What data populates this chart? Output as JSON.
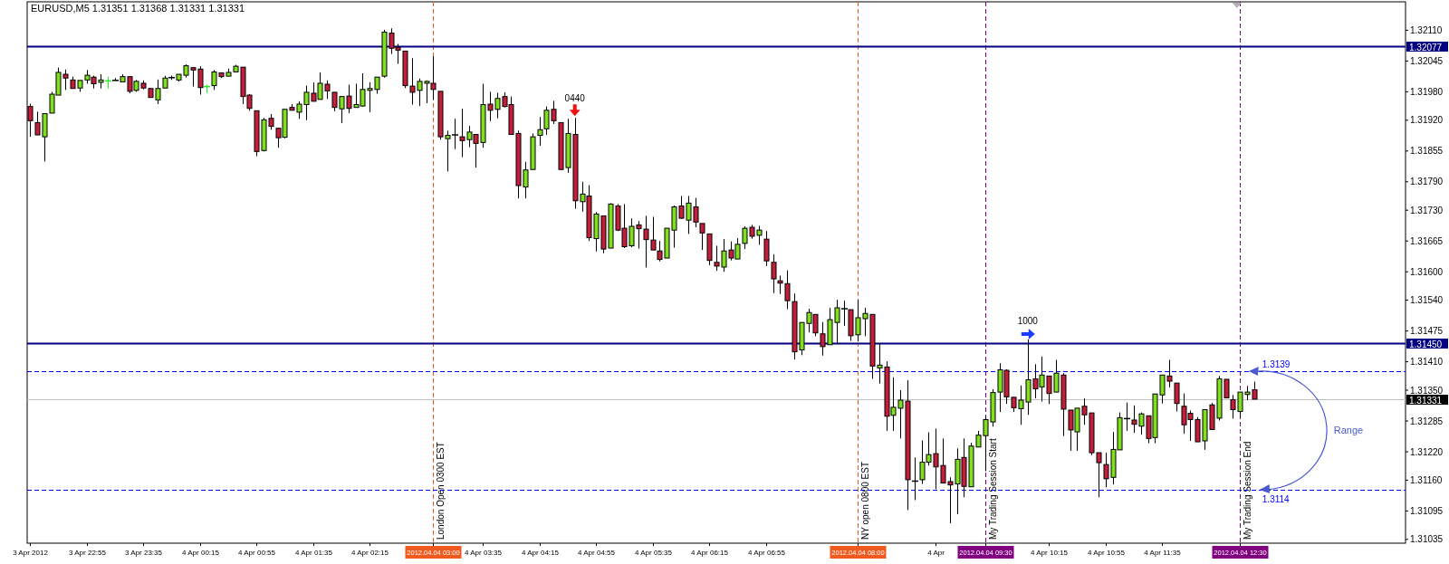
{
  "chart_data": {
    "type": "candlestick",
    "title": "EURUSD,M5 1.31351 1.31368 1.31331 1.31331",
    "xlim": [
      "2012-04-03T22:13",
      "2012-04-04T14:27"
    ],
    "ylim": [
      1.31027,
      1.3217
    ],
    "yticks": [
      {
        "value": 1.3211,
        "label": "1.32110"
      },
      1.32045,
      {
        "value": 1.3198,
        "label": "1.31980"
      },
      {
        "value": 1.3192,
        "label": "1.31920"
      },
      1.31855,
      {
        "value": 1.3179,
        "label": "1.31790"
      },
      {
        "value": 1.3173,
        "label": "1.31730"
      },
      1.31665,
      {
        "value": 1.316,
        "label": "1.31600"
      },
      {
        "value": 1.3154,
        "label": "1.31540"
      },
      1.31475,
      {
        "value": 1.3141,
        "label": "1.31410"
      },
      {
        "value": 1.3135,
        "label": "1.31350"
      },
      1.31285,
      {
        "value": 1.3122,
        "label": "1.31220"
      },
      {
        "value": 1.3116,
        "label": "1.31160"
      },
      1.31095,
      1.31035
    ],
    "xticks": [
      {
        "value": "2012-04-03T22:15",
        "label": "3 Apr 2012"
      },
      {
        "value": "2012-04-03T22:55",
        "label": "3 Apr 22:55"
      },
      {
        "value": "2012-04-03T23:35",
        "label": "3 Apr 23:35"
      },
      {
        "value": "2012-04-04T00:15",
        "label": "4 Apr 00:15"
      },
      {
        "value": "2012-04-04T00:55",
        "label": "4 Apr 00:55"
      },
      {
        "value": "2012-04-04T01:35",
        "label": "4 Apr 01:35"
      },
      {
        "value": "2012-04-04T02:15",
        "label": "4 Apr 02:15"
      },
      {
        "value": "2012-04-04T03:00",
        "label": "2012.04.04 03:00"
      },
      {
        "value": "2012-04-04T03:35",
        "label": "4 Apr 03:35"
      },
      {
        "value": "2012-04-04T04:15",
        "label": "4 Apr 04:15"
      },
      {
        "value": "2012-04-04T04:55",
        "label": "4 Apr 04:55"
      },
      {
        "value": "2012-04-04T05:35",
        "label": "4 Apr 05:35"
      },
      {
        "value": "2012-04-04T06:15",
        "label": "4 Apr 06:15"
      },
      {
        "value": "2012-04-04T06:55",
        "label": "4 Apr 06:55"
      },
      {
        "value": "2012-04-04T08:00",
        "label": "2012.04.04 08:00"
      },
      {
        "value": "2012-04-04T08:55",
        "label": "4 Apr"
      },
      {
        "value": "2012-04-04T09:30",
        "label": "2012.04.04 09:30"
      },
      {
        "value": "2012-04-04T10:15",
        "label": "4 Apr 10:15"
      },
      {
        "value": "2012-04-04T10:55",
        "label": "4 Apr 10:55"
      },
      {
        "value": "2012-04-04T11:35",
        "label": "4 Apr 11:35"
      },
      {
        "value": "2012-04-04T12:30",
        "label": "2012.04.04 12:30"
      }
    ],
    "ref_lines": [
      {
        "axis": "y",
        "value": 1.32077,
        "label": "1.32077",
        "color": "#000080",
        "line_style": "solid"
      },
      {
        "axis": "y",
        "value": 1.3145,
        "label": "1.31450",
        "color": "#000080",
        "line_style": "solid"
      },
      {
        "axis": "y",
        "value": 1.31331,
        "label": "1.31331",
        "color": "#c0c0c0",
        "line_style": "solid"
      },
      {
        "axis": "y",
        "value": 1.3139,
        "label": "1.3139",
        "color": "#0000ff",
        "line_style": "dashed"
      },
      {
        "axis": "y",
        "value": 1.3114,
        "label": "1.3114",
        "color": "#0000ff",
        "line_style": "dashed"
      },
      {
        "axis": "x",
        "value": "2012-04-04T03:00",
        "label": "London Open 0300 EST",
        "color": "#f05a1e",
        "line_style": "dashed"
      },
      {
        "axis": "x",
        "value": "2012-04-04T08:00",
        "label": "NY open 0800 EST",
        "color": "#f05a1e",
        "line_style": "dashed"
      },
      {
        "axis": "x",
        "value": "2012-04-04T09:30",
        "label": "My Trading Session Start",
        "color": "#800080",
        "line_style": "dashed"
      },
      {
        "axis": "x",
        "value": "2012-04-04T12:30",
        "label": "My Trading Session End",
        "color": "#800080",
        "line_style": "dashed"
      }
    ],
    "annotations": [
      {
        "text": "0440",
        "x": "2012-04-04T04:40",
        "y": 1.31925
      },
      {
        "text": "1000",
        "x": "2012-04-04T10:00",
        "y": 1.31457
      },
      "Range"
    ],
    "series": [
      {
        "color": "#80e01e",
        "x": [
          "2012-04-03T22:25",
          "2012-04-03T22:30",
          "2012-04-03T22:35",
          "2012-04-03T22:50",
          "2012-04-03T22:55",
          "2012-04-03T23:05",
          "2012-04-03T23:20",
          "2012-04-03T23:30",
          "2012-04-03T23:45",
          "2012-04-03T23:50",
          "2012-04-04T00:00",
          "2012-04-04T00:05",
          "2012-04-04T00:25",
          "2012-04-04T00:35",
          "2012-04-04T00:40",
          "2012-04-04T01:00",
          "2012-04-04T01:15",
          "2012-04-04T01:25",
          "2012-04-04T01:30",
          "2012-04-04T01:40",
          "2012-04-04T01:55",
          "2012-04-04T02:05",
          "2012-04-04T02:10",
          "2012-04-04T02:15",
          "2012-04-04T02:20",
          "2012-04-04T02:25",
          "2012-04-04T02:50",
          "2012-04-04T02:55",
          "2012-04-04T03:10",
          "2012-04-04T03:25",
          "2012-04-04T03:35",
          "2012-04-04T03:45",
          "2012-04-04T04:05",
          "2012-04-04T04:10",
          "2012-04-04T04:15",
          "2012-04-04T04:20",
          "2012-04-04T04:35",
          "2012-04-04T04:45",
          "2012-04-04T04:55",
          "2012-04-04T05:05",
          "2012-04-04T05:20",
          "2012-04-04T05:45",
          "2012-04-04T05:50",
          "2012-04-04T06:00",
          "2012-04-04T06:25",
          "2012-04-04T06:35",
          "2012-04-04T06:40",
          "2012-04-04T06:50",
          "2012-04-04T07:20",
          "2012-04-04T07:25",
          "2012-04-04T07:40",
          "2012-04-04T07:45",
          "2012-04-04T08:00",
          "2012-04-04T08:05",
          "2012-04-04T08:15",
          "2012-04-04T08:25",
          "2012-04-04T08:30",
          "2012-04-04T08:45",
          "2012-04-04T08:50",
          "2012-04-04T09:10",
          "2012-04-04T09:20",
          "2012-04-04T09:25",
          "2012-04-04T09:30",
          "2012-04-04T09:35",
          "2012-04-04T09:40",
          "2012-04-04T09:55",
          "2012-04-04T10:00",
          "2012-04-04T10:10",
          "2012-04-04T10:20",
          "2012-04-04T10:35",
          "2012-04-04T11:00",
          "2012-04-04T11:05",
          "2012-04-04T11:20",
          "2012-04-04T11:30",
          "2012-04-04T11:35",
          "2012-04-04T12:05",
          "2012-04-04T12:15",
          "2012-04-04T12:30",
          "2012-04-04T12:35"
        ],
        "ohlc": [
          [
            1.31885,
            1.31934,
            1.31833,
            1.31934
          ],
          [
            1.31935,
            1.3198,
            1.31935,
            1.31975
          ],
          [
            1.31973,
            1.32031,
            1.31973,
            1.32021
          ],
          [
            1.31988,
            1.32004,
            1.3198,
            1.32004
          ],
          [
            1.32005,
            1.32026,
            1.31997,
            1.32015
          ],
          [
            1.32,
            1.32017,
            1.31987,
            1.32005
          ],
          [
            1.32001,
            1.32017,
            1.32001,
            1.32012
          ],
          [
            1.31983,
            1.32005,
            1.3198,
            1.32002
          ],
          [
            1.31963,
            1.32006,
            1.31954,
            1.31987
          ],
          [
            1.31988,
            1.32014,
            1.31988,
            1.32009
          ],
          [
            1.32005,
            1.32017,
            1.32002,
            1.32017
          ],
          [
            1.32015,
            1.32038,
            1.3201,
            1.32035
          ],
          [
            1.31993,
            1.32026,
            1.31984,
            1.32022
          ],
          [
            1.32013,
            1.32029,
            1.32013,
            1.32021
          ],
          [
            1.32022,
            1.32037,
            1.32022,
            1.32034
          ],
          [
            1.31856,
            1.31925,
            1.31854,
            1.31921
          ],
          [
            1.31884,
            1.31943,
            1.31882,
            1.31943
          ],
          [
            1.31937,
            1.3196,
            1.31923,
            1.31954
          ],
          [
            1.31953,
            1.31993,
            1.3192,
            1.31979
          ],
          [
            1.31964,
            1.32021,
            1.31964,
            1.31998
          ],
          [
            1.31944,
            1.3197,
            1.31914,
            1.3197
          ],
          [
            1.31947,
            1.31997,
            1.31947,
            1.31953
          ],
          [
            1.3195,
            1.32019,
            1.31949,
            1.31985
          ],
          [
            1.31983,
            1.32,
            1.31937,
            1.31987
          ],
          [
            1.31985,
            1.32011,
            1.31976,
            1.32011
          ],
          [
            1.32013,
            1.32111,
            1.3201,
            1.32106
          ],
          [
            1.31983,
            1.32008,
            1.3195,
            1.32002
          ],
          [
            1.31998,
            1.32004,
            1.31956,
            1.32002
          ],
          [
            1.31881,
            1.31898,
            1.31812,
            1.31888
          ],
          [
            1.31879,
            1.31908,
            1.31863,
            1.31895
          ],
          [
            1.31873,
            1.31997,
            1.31862,
            1.31953
          ],
          [
            1.31943,
            1.31978,
            1.31924,
            1.31966
          ],
          [
            1.31779,
            1.31832,
            1.31755,
            1.31815
          ],
          [
            1.31816,
            1.31892,
            1.31816,
            1.31885
          ],
          [
            1.31888,
            1.31927,
            1.31866,
            1.319
          ],
          [
            1.31902,
            1.31949,
            1.31889,
            1.31941
          ],
          [
            1.3182,
            1.31923,
            1.31809,
            1.31892
          ],
          [
            1.31748,
            1.3179,
            1.31727,
            1.31764
          ],
          [
            1.3167,
            1.31726,
            1.31643,
            1.31722
          ],
          [
            1.3165,
            1.31745,
            1.3165,
            1.31743
          ],
          [
            1.31655,
            1.31713,
            1.31652,
            1.31696
          ],
          [
            1.31629,
            1.31692,
            1.31629,
            1.31692
          ],
          [
            1.31688,
            1.3174,
            1.31651,
            1.31737
          ],
          [
            1.31709,
            1.3176,
            1.3168,
            1.31745
          ],
          [
            1.3161,
            1.31669,
            1.316,
            1.31644
          ],
          [
            1.31627,
            1.31671,
            1.31627,
            1.31658
          ],
          [
            1.3166,
            1.31696,
            1.31648,
            1.31692
          ],
          [
            1.31677,
            1.31697,
            1.31657,
            1.31688
          ],
          [
            1.31435,
            1.31493,
            1.31424,
            1.31493
          ],
          [
            1.31491,
            1.31522,
            1.31472,
            1.31514
          ],
          [
            1.31446,
            1.31524,
            1.31446,
            1.31499
          ],
          [
            1.31493,
            1.31541,
            1.31447,
            1.31524
          ],
          [
            1.31467,
            1.31541,
            1.31453,
            1.31503
          ],
          [
            1.31501,
            1.31524,
            1.31464,
            1.31512
          ],
          [
            1.31397,
            1.31448,
            1.31364,
            1.31403
          ],
          [
            1.31297,
            1.31377,
            1.31264,
            1.31314
          ],
          [
            1.31312,
            1.3135,
            1.31248,
            1.31329
          ],
          [
            1.31161,
            1.31244,
            1.31152,
            1.31198
          ],
          [
            1.31198,
            1.31261,
            1.31191,
            1.31214
          ],
          [
            1.31152,
            1.31227,
            1.31088,
            1.31204
          ],
          [
            1.31146,
            1.31239,
            1.31146,
            1.31232
          ],
          [
            1.3123,
            1.31264,
            1.3123,
            1.31255
          ],
          [
            1.31254,
            1.31295,
            1.31179,
            1.31288
          ],
          [
            1.31283,
            1.31352,
            1.31273,
            1.31345
          ],
          [
            1.31346,
            1.31407,
            1.31304,
            1.31393
          ],
          [
            1.31311,
            1.3136,
            1.31277,
            1.31329
          ],
          [
            1.31325,
            1.31457,
            1.31298,
            1.31372
          ],
          [
            1.31357,
            1.31421,
            1.31326,
            1.31382
          ],
          [
            1.31346,
            1.31414,
            1.31346,
            1.31386
          ],
          [
            1.31262,
            1.31312,
            1.31222,
            1.31312
          ],
          [
            1.31166,
            1.31262,
            1.31151,
            1.31225
          ],
          [
            1.31224,
            1.31303,
            1.31224,
            1.31292
          ],
          [
            1.31274,
            1.31303,
            1.31256,
            1.313
          ],
          [
            1.3125,
            1.31342,
            1.31238,
            1.31342
          ],
          [
            1.3134,
            1.31382,
            1.31322,
            1.31382
          ],
          [
            1.31243,
            1.31309,
            1.31224,
            1.31309
          ],
          [
            1.31291,
            1.3138,
            1.31286,
            1.31374
          ],
          [
            1.31305,
            1.31346,
            1.31293,
            1.31346
          ],
          [
            1.31341,
            1.31359,
            1.31329,
            1.31346
          ]
        ]
      },
      {
        "color": "#c41e3a",
        "x": [
          "2012-04-03T22:15",
          "2012-04-03T22:20",
          "2012-04-03T22:40",
          "2012-04-03T22:45",
          "2012-04-03T23:00",
          "2012-04-03T23:25",
          "2012-04-03T23:35",
          "2012-04-03T23:40",
          "2012-04-04T00:10",
          "2012-04-04T00:15",
          "2012-04-04T00:30",
          "2012-04-04T00:45",
          "2012-04-04T00:50",
          "2012-04-04T00:55",
          "2012-04-04T01:05",
          "2012-04-04T01:10",
          "2012-04-04T01:20",
          "2012-04-04T01:35",
          "2012-04-04T01:45",
          "2012-04-04T01:50",
          "2012-04-04T02:00",
          "2012-04-04T02:30",
          "2012-04-04T02:35",
          "2012-04-04T02:40",
          "2012-04-04T02:45",
          "2012-04-04T03:00",
          "2012-04-04T03:05",
          "2012-04-04T03:20",
          "2012-04-04T03:30",
          "2012-04-04T03:40",
          "2012-04-04T03:50",
          "2012-04-04T03:55",
          "2012-04-04T04:00",
          "2012-04-04T04:25",
          "2012-04-04T04:30",
          "2012-04-04T04:40",
          "2012-04-04T04:50",
          "2012-04-04T05:00",
          "2012-04-04T05:10",
          "2012-04-04T05:15",
          "2012-04-04T05:25",
          "2012-04-04T05:30",
          "2012-04-04T05:35",
          "2012-04-04T05:40",
          "2012-04-04T05:55",
          "2012-04-04T06:05",
          "2012-04-04T06:10",
          "2012-04-04T06:15",
          "2012-04-04T06:20",
          "2012-04-04T06:30",
          "2012-04-04T06:45",
          "2012-04-04T06:55",
          "2012-04-04T07:00",
          "2012-04-04T07:05",
          "2012-04-04T07:10",
          "2012-04-04T07:15",
          "2012-04-04T07:30",
          "2012-04-04T07:35",
          "2012-04-04T07:55",
          "2012-04-04T08:10",
          "2012-04-04T08:20",
          "2012-04-04T08:35",
          "2012-04-04T08:55",
          "2012-04-04T09:00",
          "2012-04-04T09:05",
          "2012-04-04T09:15",
          "2012-04-04T09:45",
          "2012-04-04T09:50",
          "2012-04-04T10:05",
          "2012-04-04T10:15",
          "2012-04-04T10:25",
          "2012-04-04T10:30",
          "2012-04-04T10:40",
          "2012-04-04T10:45",
          "2012-04-04T10:50",
          "2012-04-04T10:55",
          "2012-04-04T11:15",
          "2012-04-04T11:25",
          "2012-04-04T11:40",
          "2012-04-04T11:45",
          "2012-04-04T11:50",
          "2012-04-04T11:55",
          "2012-04-04T12:00",
          "2012-04-04T12:10",
          "2012-04-04T12:20",
          "2012-04-04T12:25",
          "2012-04-04T12:40"
        ],
        "ohlc": [
          [
            1.31949,
            1.31955,
            1.31885,
            1.31919
          ],
          [
            1.31915,
            1.31938,
            1.31889,
            1.31889
          ],
          [
            1.32017,
            1.32027,
            1.31984,
            1.32009
          ],
          [
            1.32005,
            1.32012,
            1.31987,
            1.31987
          ],
          [
            1.32011,
            1.32014,
            1.31987,
            1.31997
          ],
          [
            1.32012,
            1.32012,
            1.31977,
            1.31981
          ],
          [
            1.31998,
            1.32004,
            1.31985,
            1.31988
          ],
          [
            1.31987,
            1.31987,
            1.31968,
            1.31968
          ],
          [
            1.32031,
            1.32031,
            1.31991,
            1.32026
          ],
          [
            1.32028,
            1.32034,
            1.31974,
            1.31989
          ],
          [
            1.3202,
            1.3202,
            1.32009,
            1.32012
          ],
          [
            1.32032,
            1.32032,
            1.31954,
            1.3197
          ],
          [
            1.31973,
            1.31975,
            1.3194,
            1.31945
          ],
          [
            1.3194,
            1.3194,
            1.31844,
            1.31854
          ],
          [
            1.31924,
            1.31933,
            1.319,
            1.31907
          ],
          [
            1.31903,
            1.31903,
            1.31862,
            1.31883
          ],
          [
            1.31947,
            1.31954,
            1.31941,
            1.31941
          ],
          [
            1.31977,
            1.32,
            1.3196,
            1.3196
          ],
          [
            1.31996,
            1.32004,
            1.31965,
            1.31982
          ],
          [
            1.31979,
            1.31979,
            1.31939,
            1.31947
          ],
          [
            1.31971,
            1.31995,
            1.31935,
            1.31945
          ],
          [
            1.32104,
            1.32114,
            1.3206,
            1.32072
          ],
          [
            1.32074,
            1.32081,
            1.32039,
            1.32068
          ],
          [
            1.32066,
            1.32066,
            1.31988,
            1.31993
          ],
          [
            1.31992,
            1.32051,
            1.31953,
            1.31979
          ],
          [
            1.31998,
            1.32055,
            1.31963,
            1.31985
          ],
          [
            1.31981,
            1.31981,
            1.31879,
            1.31885
          ],
          [
            1.31885,
            1.31944,
            1.31842,
            1.31877
          ],
          [
            1.3189,
            1.3189,
            1.3182,
            1.31871
          ],
          [
            1.31954,
            1.3198,
            1.31918,
            1.31941
          ],
          [
            1.3197,
            1.31979,
            1.31947,
            1.31949
          ],
          [
            1.31953,
            1.3197,
            1.3189,
            1.3189
          ],
          [
            1.31892,
            1.31898,
            1.31755,
            1.31782
          ],
          [
            1.31943,
            1.31961,
            1.31912,
            1.31919
          ],
          [
            1.31915,
            1.31915,
            1.31816,
            1.31816
          ],
          [
            1.3189,
            1.31925,
            1.31733,
            1.3175
          ],
          [
            1.3176,
            1.31783,
            1.31665,
            1.31672
          ],
          [
            1.31718,
            1.31718,
            1.31639,
            1.31648
          ],
          [
            1.31739,
            1.31743,
            1.31686,
            1.31688
          ],
          [
            1.31692,
            1.31743,
            1.3165,
            1.31653
          ],
          [
            1.31699,
            1.31707,
            1.31649,
            1.31691
          ],
          [
            1.3169,
            1.31718,
            1.31609,
            1.31668
          ],
          [
            1.31667,
            1.31716,
            1.31646,
            1.31646
          ],
          [
            1.31644,
            1.31665,
            1.31622,
            1.31626
          ],
          [
            1.31739,
            1.3176,
            1.31712,
            1.31713
          ],
          [
            1.31737,
            1.31756,
            1.31694,
            1.31705
          ],
          [
            1.31702,
            1.31702,
            1.31646,
            1.31682
          ],
          [
            1.3168,
            1.3168,
            1.31614,
            1.31624
          ],
          [
            1.3162,
            1.31655,
            1.31602,
            1.31612
          ],
          [
            1.31646,
            1.31664,
            1.31624,
            1.31629
          ],
          [
            1.31694,
            1.31699,
            1.3167,
            1.31675
          ],
          [
            1.31669,
            1.31686,
            1.31612,
            1.31623
          ],
          [
            1.3162,
            1.31637,
            1.31555,
            1.31585
          ],
          [
            1.31581,
            1.31592,
            1.31553,
            1.31576
          ],
          [
            1.31575,
            1.31603,
            1.31521,
            1.31539
          ],
          [
            1.31537,
            1.31554,
            1.31415,
            1.31431
          ],
          [
            1.3151,
            1.3151,
            1.31464,
            1.31471
          ],
          [
            1.31469,
            1.31494,
            1.31423,
            1.31442
          ],
          [
            1.3152,
            1.3152,
            1.31454,
            1.31465
          ],
          [
            1.3151,
            1.3151,
            1.31374,
            1.31401
          ],
          [
            1.31399,
            1.31411,
            1.31264,
            1.31295
          ],
          [
            1.31327,
            1.31371,
            1.31097,
            1.31161
          ],
          [
            1.31216,
            1.31269,
            1.31141,
            1.31188
          ],
          [
            1.31191,
            1.31248,
            1.31154,
            1.31154
          ],
          [
            1.31157,
            1.31166,
            1.31069,
            1.3115
          ],
          [
            1.31208,
            1.31248,
            1.31124,
            1.31147
          ],
          [
            1.31392,
            1.31394,
            1.31321,
            1.31336
          ],
          [
            1.31335,
            1.31335,
            1.31304,
            1.31313
          ],
          [
            1.31374,
            1.31405,
            1.31333,
            1.31353
          ],
          [
            1.3138,
            1.3138,
            1.31321,
            1.31343
          ],
          [
            1.31382,
            1.31386,
            1.31253,
            1.3131
          ],
          [
            1.31308,
            1.31308,
            1.31222,
            1.31266
          ],
          [
            1.31316,
            1.31333,
            1.31277,
            1.31298
          ],
          [
            1.31302,
            1.31302,
            1.31213,
            1.31218
          ],
          [
            1.31218,
            1.31218,
            1.31124,
            1.31197
          ],
          [
            1.31193,
            1.31218,
            1.31145,
            1.31163
          ],
          [
            1.31287,
            1.31318,
            1.3126,
            1.31278
          ],
          [
            1.31296,
            1.31296,
            1.31238,
            1.31248
          ],
          [
            1.3138,
            1.31414,
            1.31356,
            1.31369
          ],
          [
            1.31365,
            1.31365,
            1.31305,
            1.31322
          ],
          [
            1.31316,
            1.31343,
            1.31258,
            1.31277
          ],
          [
            1.31301,
            1.31307,
            1.31243,
            1.31288
          ],
          [
            1.31288,
            1.31293,
            1.31241,
            1.31241
          ],
          [
            1.31319,
            1.31323,
            1.31267,
            1.31267
          ],
          [
            1.31373,
            1.31373,
            1.31334,
            1.31334
          ],
          [
            1.3133,
            1.3134,
            1.3129,
            1.31309
          ],
          [
            1.31351,
            1.31368,
            1.31331,
            1.31331
          ]
        ]
      },
      {
        "color": "#22ee22",
        "x": [
          "2012-04-03T23:10",
          "2012-04-04T00:20"
        ],
        "ohlc": [
          [
            1.32003,
            1.32012,
            1.31987,
            1.32003
          ],
          [
            1.31991,
            1.31995,
            1.31977,
            1.31991
          ]
        ]
      },
      {
        "color": "#000000",
        "x": [
          "2012-04-03T23:15",
          "2012-04-03T23:55",
          "2012-04-04T03:15",
          "2012-04-04T07:50",
          "2012-04-04T08:40",
          "2012-04-04T11:10"
        ],
        "ohlc": [
          [
            1.32004,
            1.32009,
            1.32004,
            1.32004
          ],
          [
            1.3201,
            1.32014,
            1.32005,
            1.3201
          ],
          [
            1.31889,
            1.31923,
            1.31859,
            1.31889
          ],
          [
            1.31522,
            1.31539,
            1.31486,
            1.31522
          ],
          [
            1.31158,
            1.31208,
            1.31118,
            1.31158
          ],
          [
            1.3129,
            1.31324,
            1.31264,
            1.3129
          ]
        ]
      }
    ]
  }
}
